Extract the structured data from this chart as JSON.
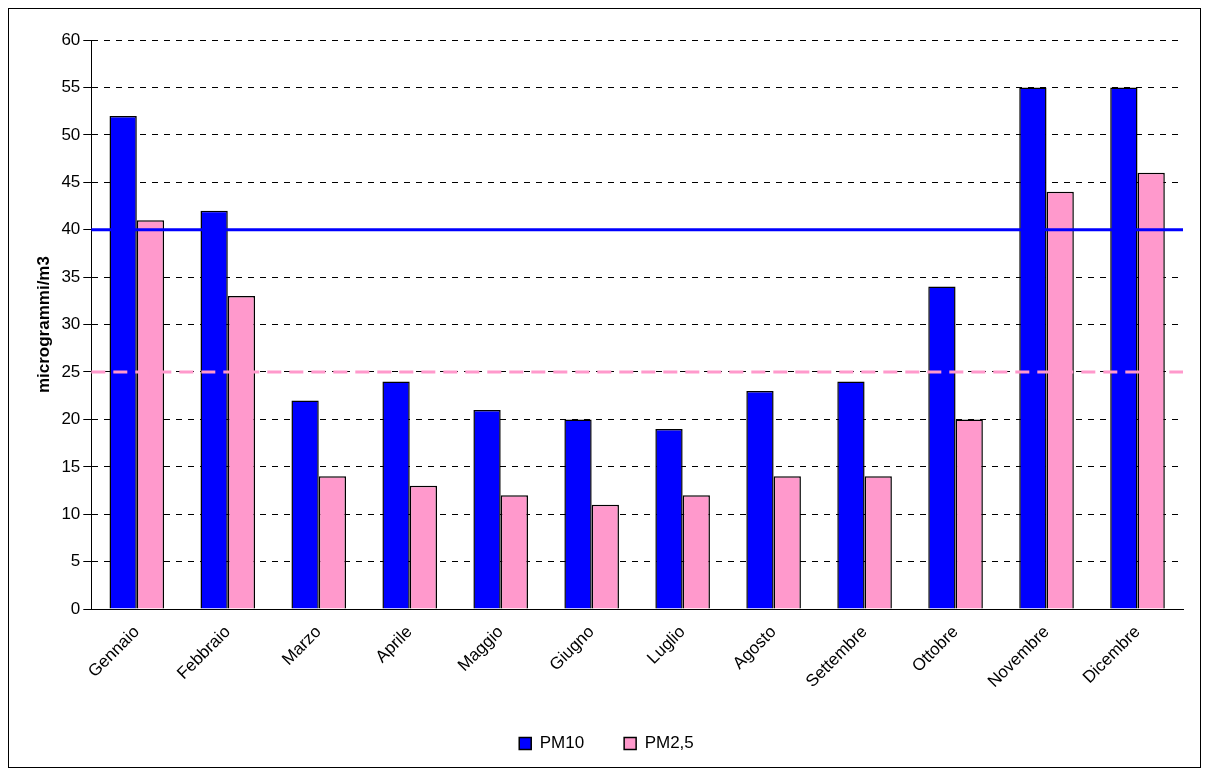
{
  "chart_data": {
    "type": "bar",
    "ylabel": "microgrammi/m3",
    "categories": [
      "Gennaio",
      "Febbraio",
      "Marzo",
      "Aprile",
      "Maggio",
      "Giugno",
      "Luglio",
      "Agosto",
      "Settembre",
      "Ottobre",
      "Novembre",
      "Dicembre"
    ],
    "series": [
      {
        "name": "PM10",
        "color": "#0000ff",
        "values": [
          52,
          42,
          22,
          24,
          21,
          20,
          19,
          23,
          24,
          34,
          55,
          55
        ]
      },
      {
        "name": "PM2,5",
        "color": "#ff99cc",
        "values": [
          41,
          33,
          14,
          13,
          12,
          11,
          12,
          14,
          14,
          20,
          44,
          46
        ]
      }
    ],
    "ylim": [
      0,
      60
    ],
    "yticks": [
      0,
      5,
      10,
      15,
      20,
      25,
      30,
      35,
      40,
      45,
      50,
      55,
      60
    ],
    "grid": "y",
    "legend": "bottom",
    "ref_lines": [
      {
        "axis": "y",
        "value": 40,
        "color": "#0000ff",
        "line_style": "solid"
      },
      {
        "axis": "y",
        "value": 25,
        "color": "#ff99cc",
        "line_style": "dashed"
      }
    ]
  }
}
